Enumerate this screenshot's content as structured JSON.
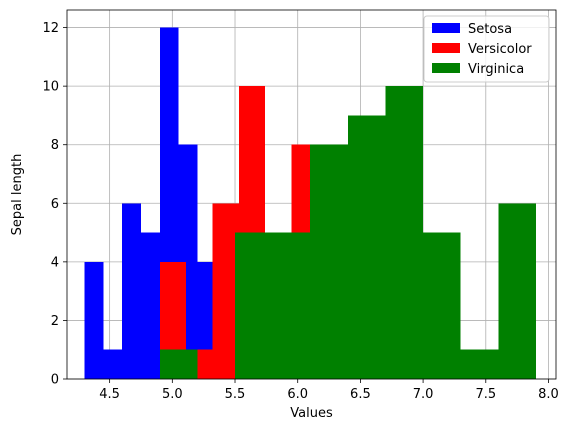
{
  "chart_data": {
    "type": "bar",
    "subtype": "histogram-overlay",
    "title": "",
    "xlabel": "Values",
    "ylabel": "Sepal length",
    "xlim": [
      4.16,
      8.06
    ],
    "ylim": [
      0,
      12.6
    ],
    "xticks": [
      "4.5",
      "5.0",
      "5.5",
      "6.0",
      "6.5",
      "7.0",
      "7.5",
      "8.0"
    ],
    "yticks": [
      "0",
      "2",
      "4",
      "6",
      "8",
      "10",
      "12"
    ],
    "grid": true,
    "legend_position": "top-right",
    "series": [
      {
        "name": "Setosa",
        "color": "#0000ff",
        "bins": [
          {
            "x0": 4.3,
            "x1": 4.45,
            "count": 4
          },
          {
            "x0": 4.45,
            "x1": 4.6,
            "count": 1
          },
          {
            "x0": 4.6,
            "x1": 4.75,
            "count": 6
          },
          {
            "x0": 4.75,
            "x1": 4.9,
            "count": 5
          },
          {
            "x0": 4.9,
            "x1": 5.05,
            "count": 12
          },
          {
            "x0": 5.05,
            "x1": 5.2,
            "count": 8
          },
          {
            "x0": 5.2,
            "x1": 5.35,
            "count": 4
          },
          {
            "x0": 5.35,
            "x1": 5.5,
            "count": 6
          },
          {
            "x0": 5.5,
            "x1": 5.65,
            "count": 1
          },
          {
            "x0": 5.65,
            "x1": 5.8,
            "count": 3
          }
        ]
      },
      {
        "name": "Versicolor",
        "color": "#ff0000",
        "bins": [
          {
            "x0": 4.9,
            "x1": 5.11,
            "count": 4
          },
          {
            "x0": 5.11,
            "x1": 5.32,
            "count": 1
          },
          {
            "x0": 5.32,
            "x1": 5.53,
            "count": 6
          },
          {
            "x0": 5.53,
            "x1": 5.74,
            "count": 10
          },
          {
            "x0": 5.74,
            "x1": 5.95,
            "count": 5
          },
          {
            "x0": 5.95,
            "x1": 6.16,
            "count": 8
          },
          {
            "x0": 6.16,
            "x1": 6.37,
            "count": 5
          },
          {
            "x0": 6.37,
            "x1": 6.58,
            "count": 5
          },
          {
            "x0": 6.58,
            "x1": 6.79,
            "count": 3
          },
          {
            "x0": 6.79,
            "x1": 7.0,
            "count": 3
          }
        ]
      },
      {
        "name": "Virginica",
        "color": "#008000",
        "bins": [
          {
            "x0": 4.9,
            "x1": 5.2,
            "count": 1
          },
          {
            "x0": 5.2,
            "x1": 5.5,
            "count": 0
          },
          {
            "x0": 5.5,
            "x1": 5.8,
            "count": 5
          },
          {
            "x0": 5.8,
            "x1": 6.1,
            "count": 5
          },
          {
            "x0": 6.1,
            "x1": 6.4,
            "count": 8
          },
          {
            "x0": 6.4,
            "x1": 6.7,
            "count": 9
          },
          {
            "x0": 6.7,
            "x1": 7.0,
            "count": 10
          },
          {
            "x0": 7.0,
            "x1": 7.3,
            "count": 5
          },
          {
            "x0": 7.3,
            "x1": 7.6,
            "count": 1
          },
          {
            "x0": 7.6,
            "x1": 7.9,
            "count": 6
          }
        ]
      }
    ]
  }
}
